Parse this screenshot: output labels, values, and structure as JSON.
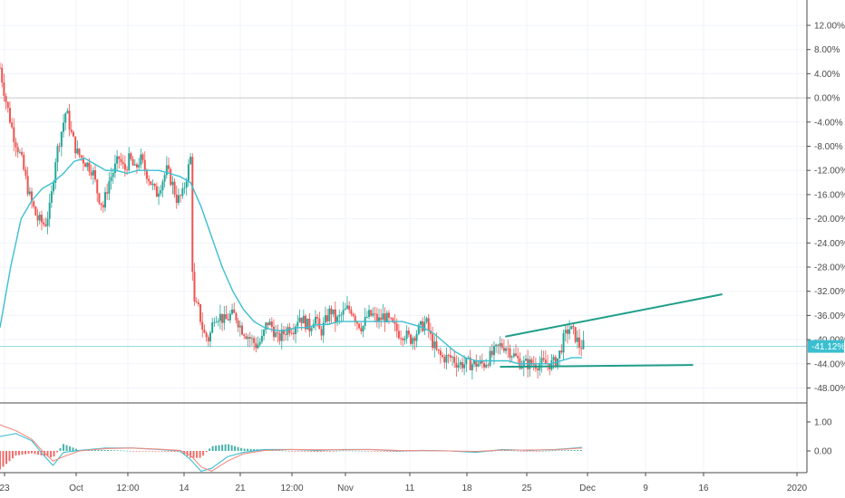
{
  "chart_data": [
    {
      "type": "candlestick",
      "title": "",
      "y_unit": "%",
      "ylim": [
        -50,
        14
      ],
      "y_ticks": [
        "12.00%",
        "8.00%",
        "4.00%",
        "0.00%",
        "-4.00%",
        "-8.00%",
        "-12.00%",
        "-16.00%",
        "-20.00%",
        "-24.00%",
        "-28.00%",
        "-32.00%",
        "-36.00%",
        "-40.00%",
        "-44.00%",
        "-48.00%"
      ],
      "x_ticks": [
        "23",
        "Oct",
        "12:00",
        "14",
        "21",
        "12:00",
        "Nov",
        "11",
        "18",
        "25",
        "Dec",
        "9",
        "16",
        "2020"
      ],
      "last_value_label": "-41.12%",
      "last_value": -41.12,
      "grid": true,
      "colors": {
        "up": "#26a69a",
        "down": "#ef5350",
        "ma": "#3bbfd0",
        "trendline": "#1f9e89",
        "badge": "#3bbfd0"
      },
      "price_path": [
        [
          0,
          5
        ],
        [
          2,
          0
        ],
        [
          5,
          -6
        ],
        [
          8,
          -10
        ],
        [
          11,
          -16
        ],
        [
          14,
          -20
        ],
        [
          17,
          -21
        ],
        [
          19,
          -18
        ],
        [
          21,
          -10
        ],
        [
          23,
          -6
        ],
        [
          25,
          -2
        ],
        [
          27,
          -6
        ],
        [
          29,
          -9
        ],
        [
          31,
          -10
        ],
        [
          33,
          -11
        ],
        [
          35,
          -12
        ],
        [
          37,
          -16
        ],
        [
          39,
          -18
        ],
        [
          41,
          -14
        ],
        [
          43,
          -12
        ],
        [
          45,
          -10
        ],
        [
          47,
          -12
        ],
        [
          49,
          -10
        ],
        [
          51,
          -12
        ],
        [
          53,
          -10
        ],
        [
          55,
          -12
        ],
        [
          57,
          -14
        ],
        [
          59,
          -16
        ],
        [
          61,
          -14
        ],
        [
          63,
          -12
        ],
        [
          65,
          -14
        ],
        [
          67,
          -17
        ],
        [
          69,
          -16
        ],
        [
          71,
          -12
        ],
        [
          72,
          -10
        ],
        [
          73,
          -34
        ],
        [
          75,
          -35
        ],
        [
          77,
          -39
        ],
        [
          79,
          -40
        ],
        [
          81,
          -36
        ],
        [
          83,
          -36
        ],
        [
          85,
          -37
        ],
        [
          87,
          -36
        ],
        [
          89,
          -36
        ],
        [
          91,
          -38
        ],
        [
          93,
          -39
        ],
        [
          95,
          -40
        ],
        [
          97,
          -41
        ],
        [
          99,
          -40
        ],
        [
          101,
          -37
        ],
        [
          103,
          -38
        ],
        [
          105,
          -40
        ],
        [
          107,
          -39
        ],
        [
          109,
          -38
        ],
        [
          111,
          -38
        ],
        [
          113,
          -36
        ],
        [
          115,
          -37
        ],
        [
          117,
          -38
        ],
        [
          119,
          -36
        ],
        [
          121,
          -39
        ],
        [
          123,
          -37
        ],
        [
          125,
          -35
        ],
        [
          127,
          -37
        ],
        [
          129,
          -36
        ],
        [
          131,
          -35
        ],
        [
          133,
          -35
        ],
        [
          135,
          -37
        ],
        [
          137,
          -38
        ],
        [
          139,
          -36
        ],
        [
          141,
          -36
        ],
        [
          143,
          -37
        ],
        [
          145,
          -36
        ],
        [
          147,
          -37
        ],
        [
          149,
          -38
        ],
        [
          151,
          -39
        ],
        [
          153,
          -39
        ],
        [
          155,
          -40
        ],
        [
          157,
          -39
        ],
        [
          159,
          -38
        ],
        [
          161,
          -37
        ],
        [
          163,
          -40
        ],
        [
          165,
          -42
        ],
        [
          167,
          -43
        ],
        [
          169,
          -43
        ],
        [
          171,
          -43
        ],
        [
          173,
          -44
        ],
        [
          175,
          -44
        ],
        [
          177,
          -44
        ],
        [
          179,
          -44
        ],
        [
          181,
          -44
        ],
        [
          183,
          -44
        ],
        [
          185,
          -43
        ],
        [
          187,
          -42
        ],
        [
          189,
          -41
        ],
        [
          191,
          -41
        ],
        [
          193,
          -42
        ],
        [
          195,
          -43
        ],
        [
          197,
          -44
        ],
        [
          199,
          -44
        ],
        [
          201,
          -44
        ],
        [
          203,
          -44
        ],
        [
          205,
          -44
        ],
        [
          207,
          -44
        ],
        [
          209,
          -44
        ],
        [
          211,
          -43
        ],
        [
          213,
          -40
        ],
        [
          215,
          -38
        ],
        [
          217,
          -39
        ],
        [
          219,
          -41
        ],
        [
          221,
          -41
        ]
      ],
      "ma_path": [
        [
          0,
          -38
        ],
        [
          4,
          -28
        ],
        [
          8,
          -20
        ],
        [
          12,
          -17
        ],
        [
          16,
          -15
        ],
        [
          20,
          -14
        ],
        [
          24,
          -12.5
        ],
        [
          28,
          -10.5
        ],
        [
          32,
          -10
        ],
        [
          36,
          -11
        ],
        [
          40,
          -12
        ],
        [
          44,
          -12
        ],
        [
          48,
          -12.5
        ],
        [
          52,
          -12
        ],
        [
          56,
          -12
        ],
        [
          60,
          -12
        ],
        [
          64,
          -12.5
        ],
        [
          68,
          -13
        ],
        [
          72,
          -14
        ],
        [
          76,
          -18
        ],
        [
          80,
          -23
        ],
        [
          84,
          -28
        ],
        [
          88,
          -32
        ],
        [
          92,
          -35
        ],
        [
          96,
          -37
        ],
        [
          100,
          -38
        ],
        [
          104,
          -38.5
        ],
        [
          108,
          -38.5
        ],
        [
          112,
          -38
        ],
        [
          116,
          -38
        ],
        [
          120,
          -37.5
        ],
        [
          124,
          -37.5
        ],
        [
          128,
          -37
        ],
        [
          132,
          -37
        ],
        [
          136,
          -37
        ],
        [
          140,
          -37
        ],
        [
          144,
          -37
        ],
        [
          148,
          -37
        ],
        [
          152,
          -37
        ],
        [
          156,
          -37.5
        ],
        [
          160,
          -38
        ],
        [
          164,
          -39
        ],
        [
          168,
          -40.5
        ],
        [
          172,
          -42
        ],
        [
          176,
          -43
        ],
        [
          180,
          -43.5
        ],
        [
          184,
          -43.5
        ],
        [
          188,
          -43.5
        ],
        [
          192,
          -43.5
        ],
        [
          196,
          -44
        ],
        [
          200,
          -44
        ],
        [
          204,
          -44
        ],
        [
          208,
          -44
        ],
        [
          212,
          -43.5
        ],
        [
          216,
          -43
        ],
        [
          220,
          -43
        ]
      ],
      "trendlines": [
        {
          "from": [
            191,
            -39.5
          ],
          "to": [
            273,
            -32.5
          ]
        },
        {
          "from": [
            189,
            -44.5
          ],
          "to": [
            262,
            -44.2
          ]
        }
      ],
      "reference_line": 0,
      "x_domain": [
        0,
        305
      ]
    },
    {
      "type": "histogram",
      "title": "",
      "ylim": [
        -1.5,
        1.6
      ],
      "y_ticks": [
        "1.00",
        "0.00"
      ],
      "macd_path": [
        [
          0,
          0.5
        ],
        [
          6,
          0.6
        ],
        [
          12,
          0.35
        ],
        [
          16,
          -0.1
        ],
        [
          20,
          -0.5
        ],
        [
          24,
          -0.05
        ],
        [
          30,
          0.02
        ],
        [
          40,
          0.1
        ],
        [
          50,
          0.1
        ],
        [
          60,
          0.05
        ],
        [
          68,
          0.0
        ],
        [
          72,
          -0.3
        ],
        [
          76,
          -0.7
        ],
        [
          80,
          -0.6
        ],
        [
          86,
          -0.2
        ],
        [
          92,
          -0.05
        ],
        [
          100,
          0.05
        ],
        [
          110,
          0.05
        ],
        [
          120,
          0.02
        ],
        [
          130,
          0.05
        ],
        [
          140,
          0.05
        ],
        [
          150,
          0.0
        ],
        [
          160,
          0.02
        ],
        [
          170,
          0.0
        ],
        [
          180,
          -0.05
        ],
        [
          190,
          0.05
        ],
        [
          200,
          0.02
        ],
        [
          210,
          0.05
        ],
        [
          220,
          0.12
        ]
      ],
      "signal_path": [
        [
          0,
          0.9
        ],
        [
          6,
          0.7
        ],
        [
          12,
          0.4
        ],
        [
          16,
          0.0
        ],
        [
          20,
          -0.35
        ],
        [
          24,
          -0.2
        ],
        [
          30,
          0.0
        ],
        [
          40,
          0.08
        ],
        [
          50,
          0.1
        ],
        [
          60,
          0.06
        ],
        [
          68,
          0.02
        ],
        [
          72,
          -0.15
        ],
        [
          76,
          -0.55
        ],
        [
          80,
          -0.7
        ],
        [
          86,
          -0.35
        ],
        [
          92,
          -0.1
        ],
        [
          100,
          0.02
        ],
        [
          110,
          0.05
        ],
        [
          120,
          0.04
        ],
        [
          130,
          0.04
        ],
        [
          140,
          0.05
        ],
        [
          150,
          0.02
        ],
        [
          160,
          0.01
        ],
        [
          170,
          0.0
        ],
        [
          180,
          -0.02
        ],
        [
          190,
          0.03
        ],
        [
          200,
          0.03
        ],
        [
          210,
          0.04
        ],
        [
          220,
          0.1
        ]
      ]
    }
  ]
}
